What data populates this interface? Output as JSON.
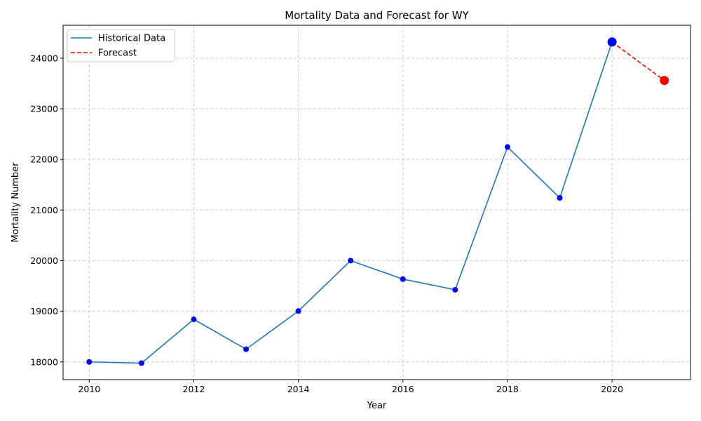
{
  "chart_data": {
    "type": "line",
    "title": "Mortality Data and Forecast for WY",
    "xlabel": "Year",
    "ylabel": "Mortality Number",
    "xlim": [
      2009.5,
      2021.5
    ],
    "ylim": [
      17650,
      24650
    ],
    "xticks": [
      2010,
      2012,
      2014,
      2016,
      2018,
      2020
    ],
    "yticks": [
      18000,
      19000,
      20000,
      21000,
      22000,
      23000,
      24000
    ],
    "grid": true,
    "legend_position": "top-left",
    "series": [
      {
        "name": "Historical Data",
        "style": "solid",
        "color": "#1f77b4",
        "marker_color": "#0000ff",
        "x": [
          2010,
          2011,
          2012,
          2013,
          2014,
          2015,
          2016,
          2017,
          2018,
          2019,
          2020
        ],
        "y": [
          18000,
          17975,
          18840,
          18250,
          19005,
          20000,
          19635,
          19425,
          22245,
          21240,
          24320
        ]
      },
      {
        "name": "Forecast",
        "style": "dashed",
        "color": "#ff0000",
        "marker_color": "#ff0000",
        "x": [
          2020,
          2021
        ],
        "y": [
          24320,
          23560
        ]
      }
    ]
  }
}
